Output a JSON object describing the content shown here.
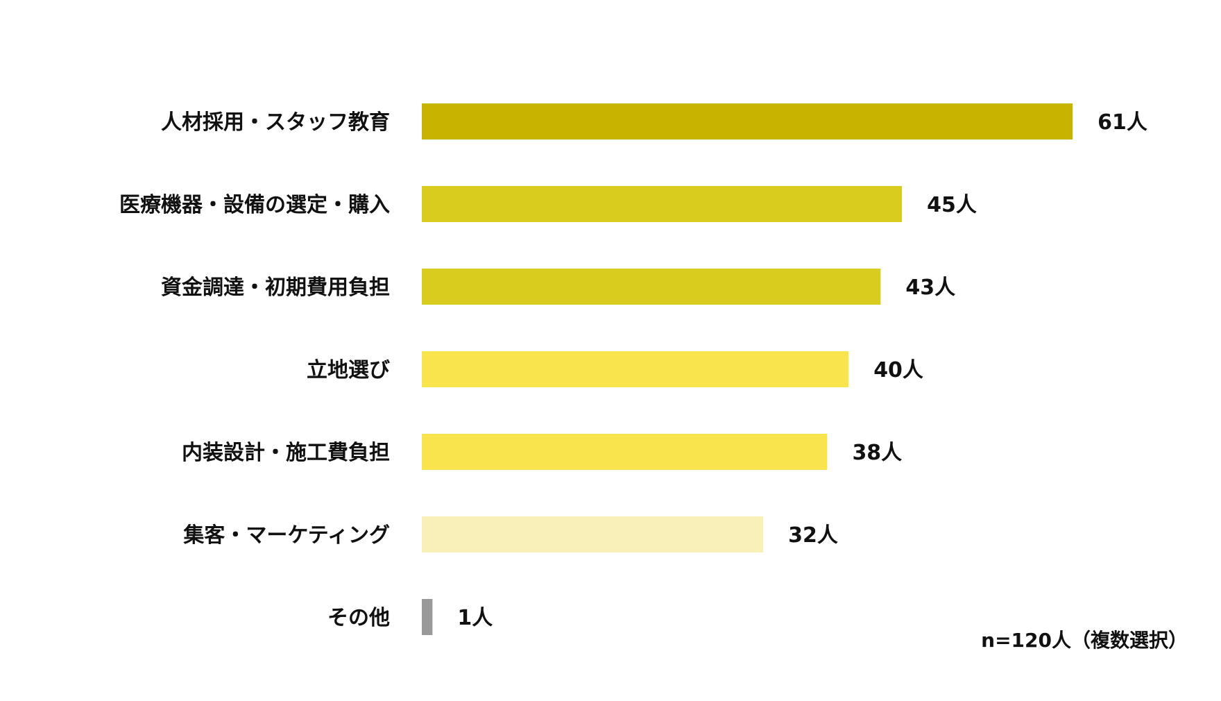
{
  "chart_data": {
    "type": "bar",
    "orientation": "horizontal",
    "categories": [
      "人材採用・スタッフ教育",
      "医療機器・設備の選定・購入",
      "資金調達・初期費用負担",
      "立地選び",
      "内装設計・施工費負担",
      "集客・マーケティング",
      "その他"
    ],
    "values": [
      61,
      45,
      43,
      40,
      38,
      32,
      1
    ],
    "value_labels": [
      "61人",
      "45人",
      "43人",
      "40人",
      "38人",
      "32人",
      "1人"
    ],
    "colors": [
      "#c8b400",
      "#d9cc1e",
      "#d9cc1e",
      "#f9e44e",
      "#f9e44e",
      "#f8f0b8",
      "#999999"
    ],
    "legend": "none",
    "grid": false,
    "note": "n=120人（複数選択）"
  }
}
